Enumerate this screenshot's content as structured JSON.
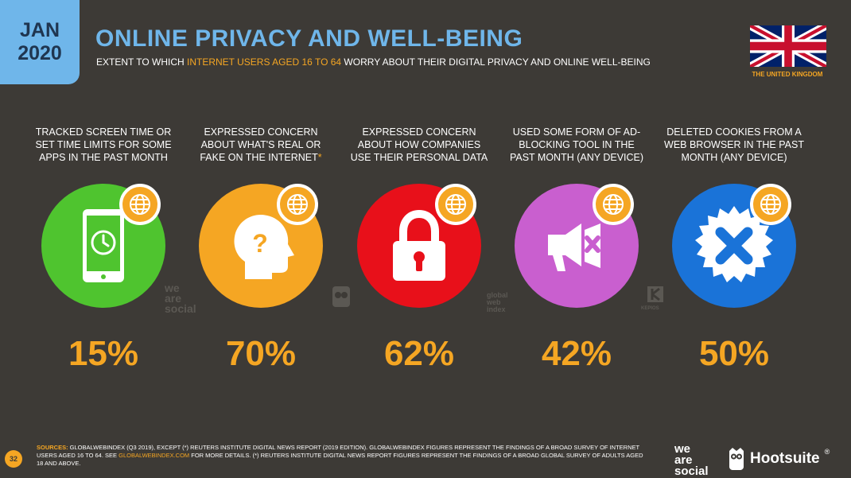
{
  "badge": {
    "month": "JAN",
    "year": "2020"
  },
  "header": {
    "title": "ONLINE PRIVACY AND WELL-BEING",
    "subtitle_pre": "EXTENT TO WHICH ",
    "subtitle_highlight": "INTERNET USERS AGED 16 TO 64",
    "subtitle_post": " WORRY ABOUT THEIR DIGITAL PRIVACY AND ONLINE WELL-BEING"
  },
  "country": "THE UNITED KINGDOM",
  "stats": [
    {
      "label": "TRACKED SCREEN TIME OR SET TIME LIMITS FOR SOME APPS IN THE PAST MONTH",
      "value": "15%",
      "icon": "smartphone-clock-icon",
      "color": "#4fc42f"
    },
    {
      "label": "EXPRESSED CONCERN ABOUT WHAT'S REAL OR FAKE ON THE INTERNET",
      "asterisk": "*",
      "value": "70%",
      "icon": "question-head-icon",
      "color": "#f5a623"
    },
    {
      "label": "EXPRESSED CONCERN ABOUT HOW COMPANIES USE THEIR PERSONAL DATA",
      "value": "62%",
      "icon": "padlock-icon",
      "color": "#e8101a"
    },
    {
      "label": "USED SOME FORM OF AD-BLOCKING TOOL IN THE PAST MONTH (ANY DEVICE)",
      "value": "42%",
      "icon": "megaphone-blocked-icon",
      "color": "#c95fcf"
    },
    {
      "label": "DELETED COOKIES FROM A WEB BROWSER IN THE PAST MONTH (ANY DEVICE)",
      "value": "50%",
      "icon": "cookie-cross-icon",
      "color": "#1a73d8"
    }
  ],
  "watermarks": {
    "we_are_social": [
      "we",
      "are",
      "social"
    ],
    "gwi": [
      "global",
      "web",
      "index"
    ],
    "kepios": "KEPIOS"
  },
  "footer": {
    "sources_label": "SOURCES:",
    "text1": " GLOBALWEBINDEX (Q3 2019), EXCEPT (*) REUTERS INSTITUTE DIGITAL NEWS REPORT (2019 EDITION). GLOBALWEBINDEX FIGURES REPRESENT THE FINDINGS OF A BROAD SURVEY OF INTERNET USERS AGED 16 TO 64. SEE ",
    "link": "GLOBALWEBINDEX.COM",
    "text2": " FOR MORE DETAILS. (*) REUTERS INSTITUTE DIGITAL NEWS REPORT FIGURES REPRESENT THE FINDINGS OF A BROAD GLOBAL SURVEY OF ADULTS AGED 18 AND ABOVE."
  },
  "page_number": "32",
  "brand": {
    "we_are_social": [
      "we",
      "are",
      "social"
    ],
    "hootsuite": "Hootsuite",
    "reg": "®"
  }
}
